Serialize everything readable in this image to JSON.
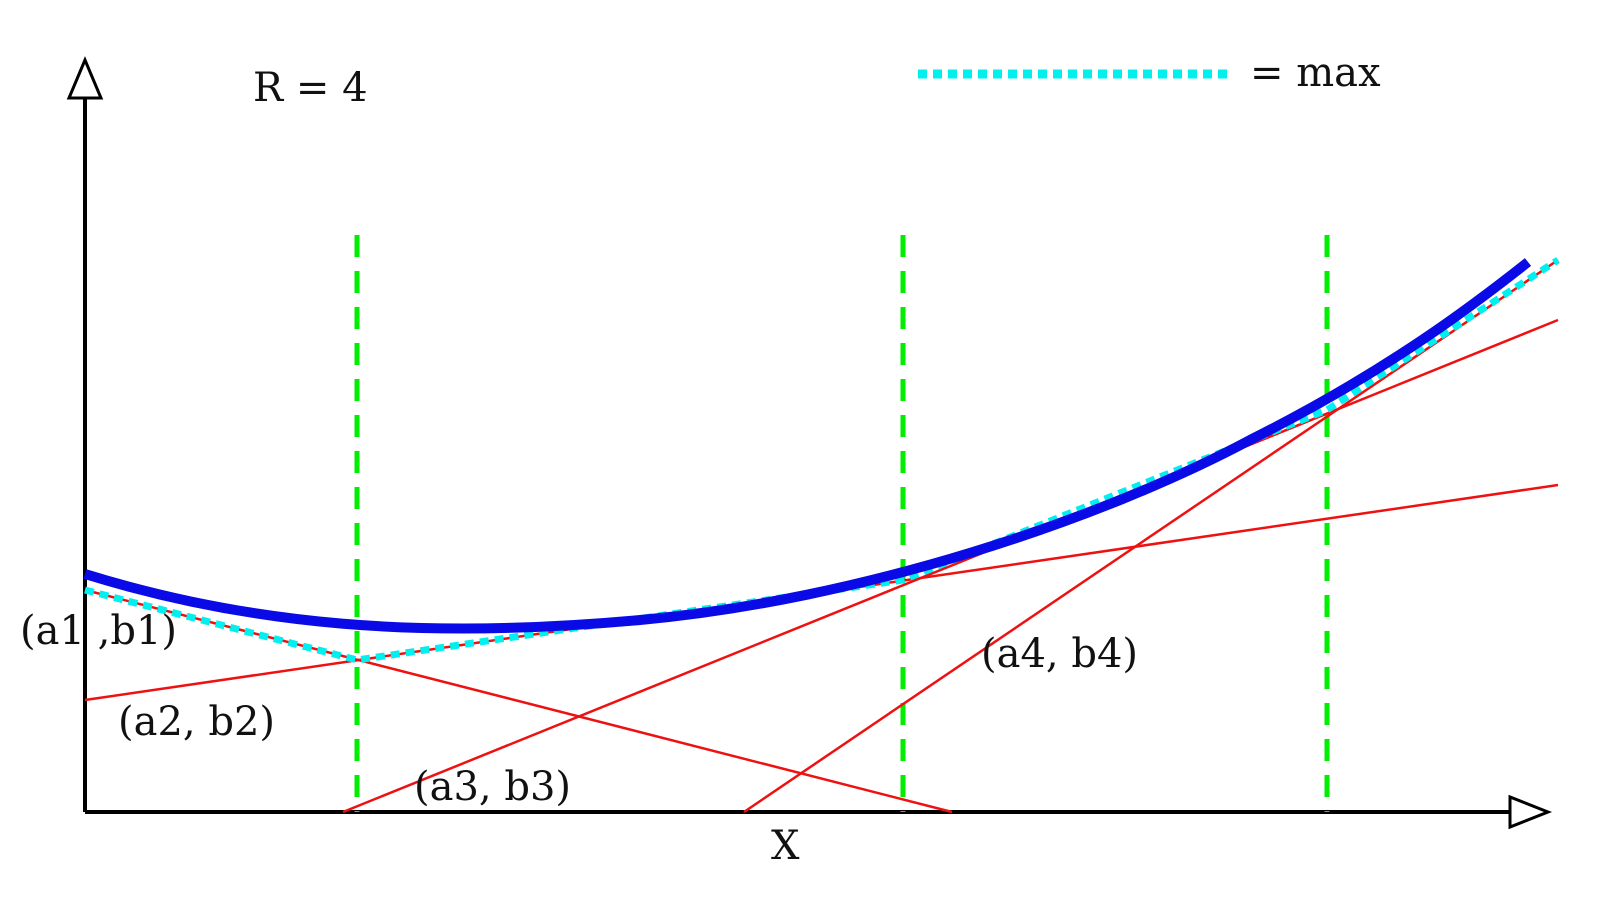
{
  "labels": {
    "r_value": "R = 4",
    "legend": "= max",
    "x_axis": "X",
    "p1": "(a1 ,b1)",
    "p2": "(a2, b2)",
    "p3": "(a3, b3)",
    "p4": "(a4, b4)"
  },
  "colors": {
    "curve": "#0a0ae6",
    "tangent_lines": "#ee1111",
    "max_envelope": "#00f0f0",
    "breakpoints": "#00ee00",
    "axes": "#000000"
  }
}
